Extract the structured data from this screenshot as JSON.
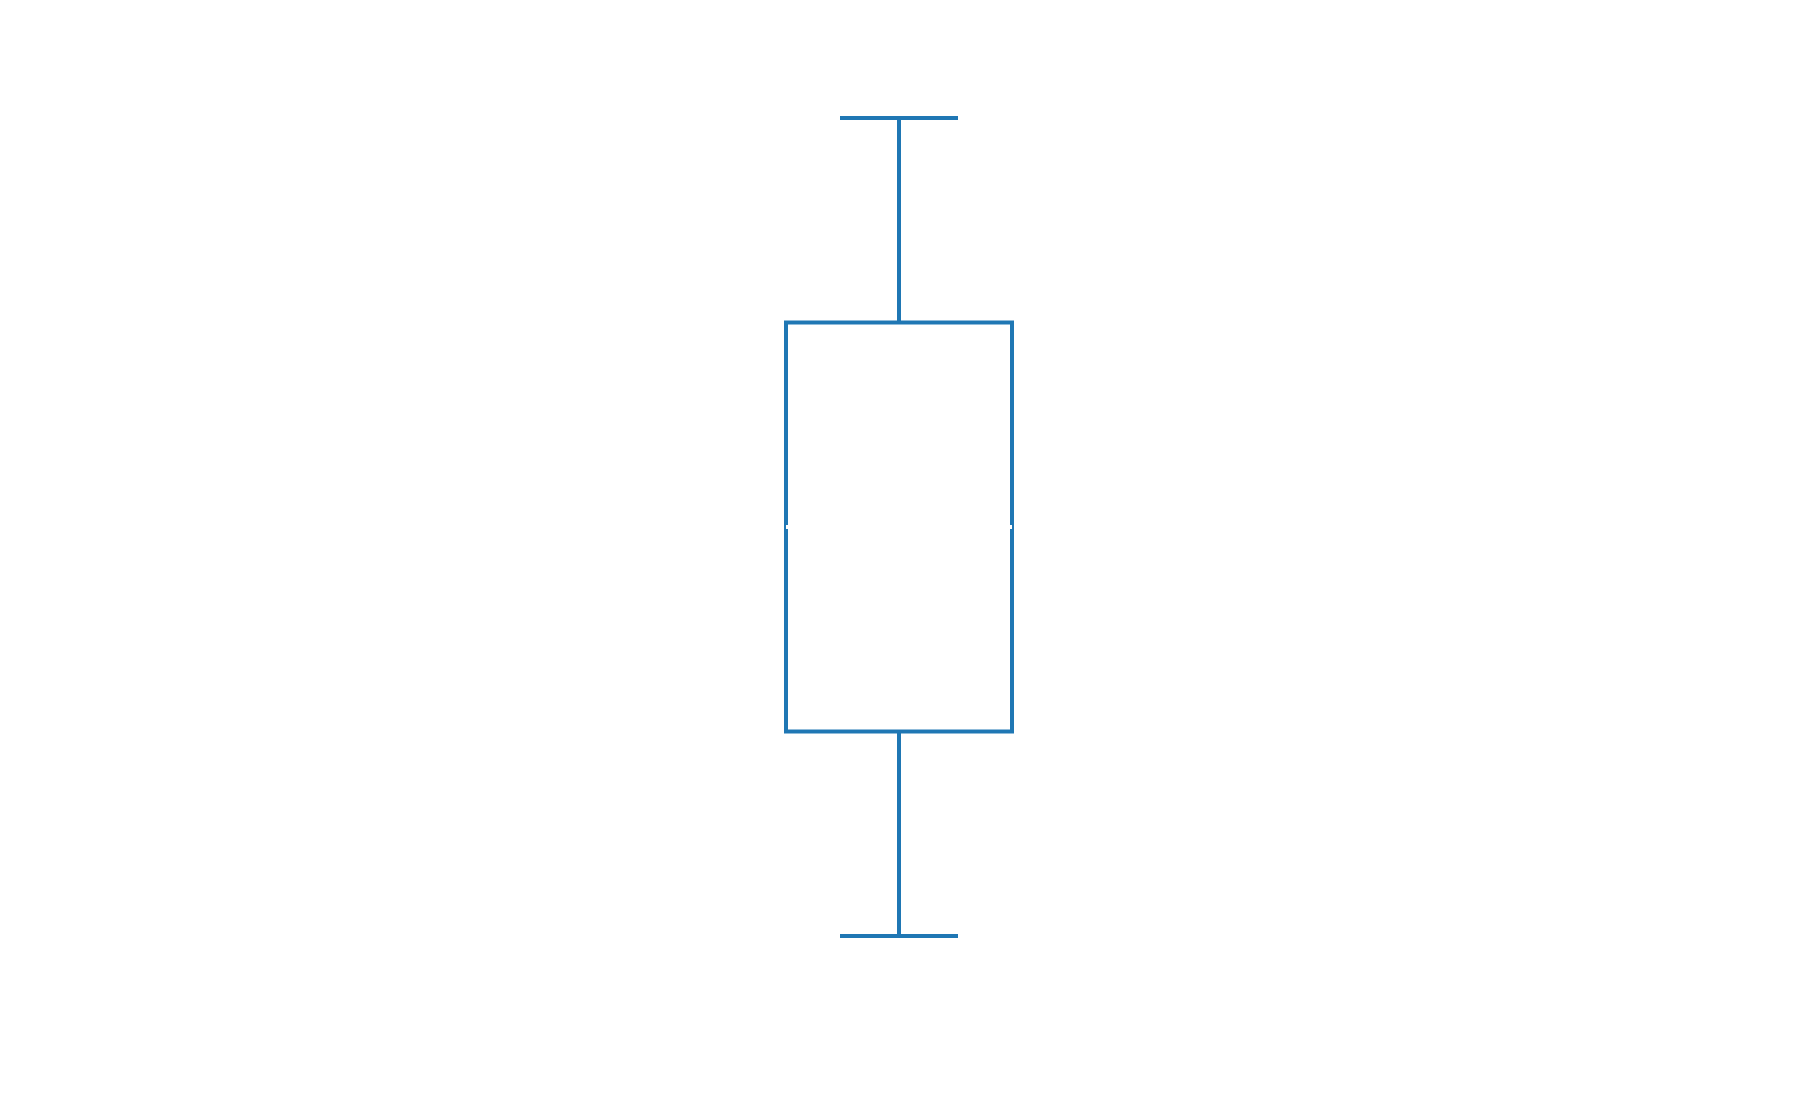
{
  "chart_data": {
    "type": "boxplot",
    "title": "",
    "xlabel": "",
    "ylabel": "",
    "axes_visible": false,
    "grid": false,
    "box_fill": "none",
    "series": [
      {
        "whisker_low": 0.0,
        "q1": 0.25,
        "median": 0.5,
        "q3": 0.75,
        "whisker_high": 1.0,
        "color": "#1f77b4"
      }
    ],
    "ylim": [
      -0.1,
      1.1
    ],
    "xlim": [
      0.5,
      1.5
    ]
  }
}
